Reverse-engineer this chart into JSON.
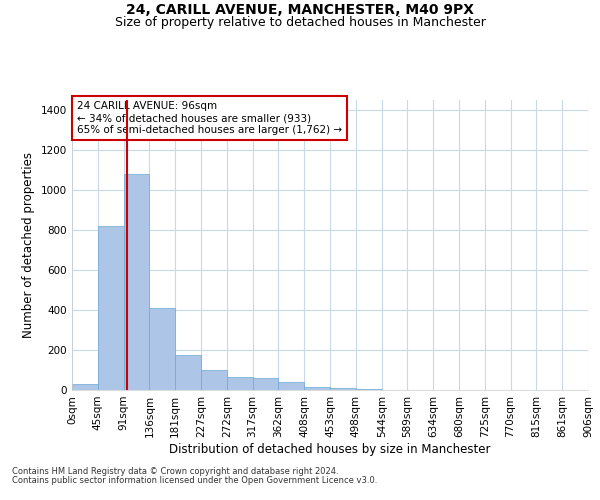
{
  "title1": "24, CARILL AVENUE, MANCHESTER, M40 9PX",
  "title2": "Size of property relative to detached houses in Manchester",
  "xlabel": "Distribution of detached houses by size in Manchester",
  "ylabel": "Number of detached properties",
  "footer1": "Contains HM Land Registry data © Crown copyright and database right 2024.",
  "footer2": "Contains public sector information licensed under the Open Government Licence v3.0.",
  "annotation_line1": "24 CARILL AVENUE: 96sqm",
  "annotation_line2": "← 34% of detached houses are smaller (933)",
  "annotation_line3": "65% of semi-detached houses are larger (1,762) →",
  "bar_color": "#adc6e8",
  "bar_edge_color": "#6aaad4",
  "grid_color": "#c8d8ea",
  "property_line_x": 96,
  "annotation_box_color": "#cc0000",
  "bin_edges": [
    0,
    45,
    91,
    136,
    181,
    227,
    272,
    317,
    362,
    408,
    453,
    498,
    544,
    589,
    634,
    680,
    725,
    770,
    815,
    861,
    906
  ],
  "bin_labels": [
    "0sqm",
    "45sqm",
    "91sqm",
    "136sqm",
    "181sqm",
    "227sqm",
    "272sqm",
    "317sqm",
    "362sqm",
    "408sqm",
    "453sqm",
    "498sqm",
    "544sqm",
    "589sqm",
    "634sqm",
    "680sqm",
    "725sqm",
    "770sqm",
    "815sqm",
    "861sqm",
    "906sqm"
  ],
  "bar_heights": [
    30,
    820,
    1080,
    410,
    175,
    100,
    65,
    60,
    40,
    15,
    8,
    5,
    0,
    0,
    0,
    0,
    0,
    0,
    0,
    0
  ],
  "ylim": [
    0,
    1450
  ],
  "yticks": [
    0,
    200,
    400,
    600,
    800,
    1000,
    1200,
    1400
  ],
  "title1_fontsize": 10,
  "title2_fontsize": 9,
  "xlabel_fontsize": 8.5,
  "ylabel_fontsize": 8.5,
  "tick_fontsize": 7.5,
  "annotation_fontsize": 7.5,
  "footer_fontsize": 6
}
